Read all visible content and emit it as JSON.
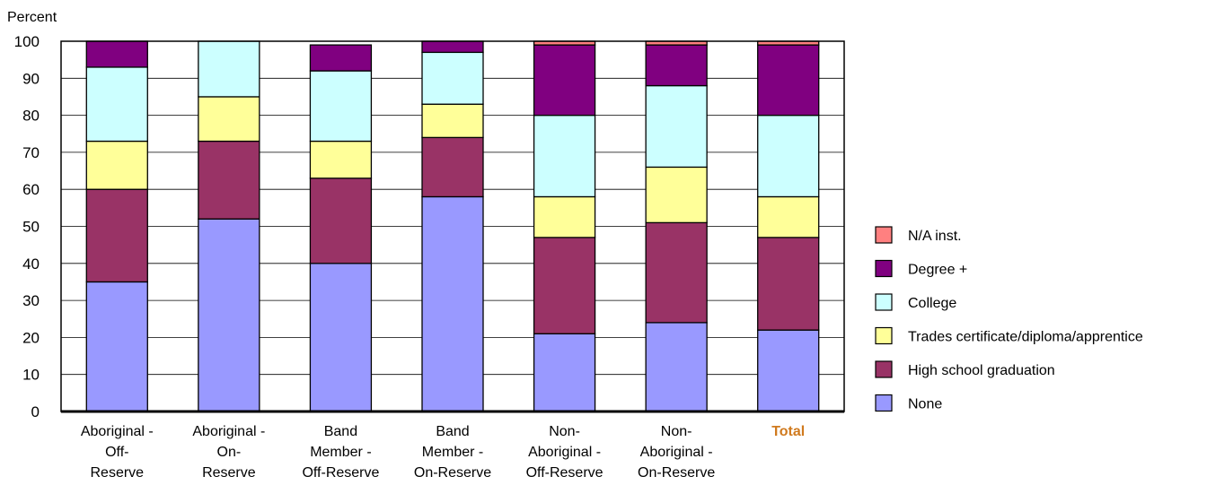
{
  "chart_data": {
    "type": "bar",
    "stacked": true,
    "ylabel": "Percent",
    "ylim": [
      0,
      100
    ],
    "yticks": [
      0,
      10,
      20,
      30,
      40,
      50,
      60,
      70,
      80,
      90,
      100
    ],
    "grid": true,
    "legend_position": "right",
    "categories": [
      [
        "Aboriginal -",
        "Off-",
        "Reserve"
      ],
      [
        "Aboriginal -",
        "On-",
        "Reserve"
      ],
      [
        "Band",
        "Member -",
        "Off-Reserve"
      ],
      [
        "Band",
        "Member -",
        "On-Reserve"
      ],
      [
        "Non-",
        "Aboriginal -",
        "Off-Reserve"
      ],
      [
        "Non-",
        "Aboriginal -",
        "On-Reserve"
      ],
      [
        "Total"
      ]
    ],
    "highlight_category_index": 6,
    "highlight_color": "#d07a1e",
    "series": [
      {
        "name": "None",
        "color": "#9999ff",
        "values": [
          35,
          52,
          40,
          58,
          21,
          24,
          22
        ]
      },
      {
        "name": "High school graduation",
        "color": "#993366",
        "values": [
          25,
          21,
          23,
          16,
          26,
          27,
          25
        ]
      },
      {
        "name": "Trades certificate/diploma/apprentice",
        "color": "#ffff99",
        "values": [
          13,
          12,
          10,
          9,
          11,
          15,
          11
        ]
      },
      {
        "name": "College",
        "color": "#ccffff",
        "values": [
          20,
          15,
          19,
          14,
          22,
          22,
          22
        ]
      },
      {
        "name": "Degree +",
        "color": "#800080",
        "values": [
          7,
          0,
          7,
          3,
          19,
          11,
          19
        ]
      },
      {
        "name": "N/A inst.",
        "color": "#ff8080",
        "values": [
          0,
          0,
          0,
          0,
          1,
          1,
          1
        ]
      }
    ]
  }
}
